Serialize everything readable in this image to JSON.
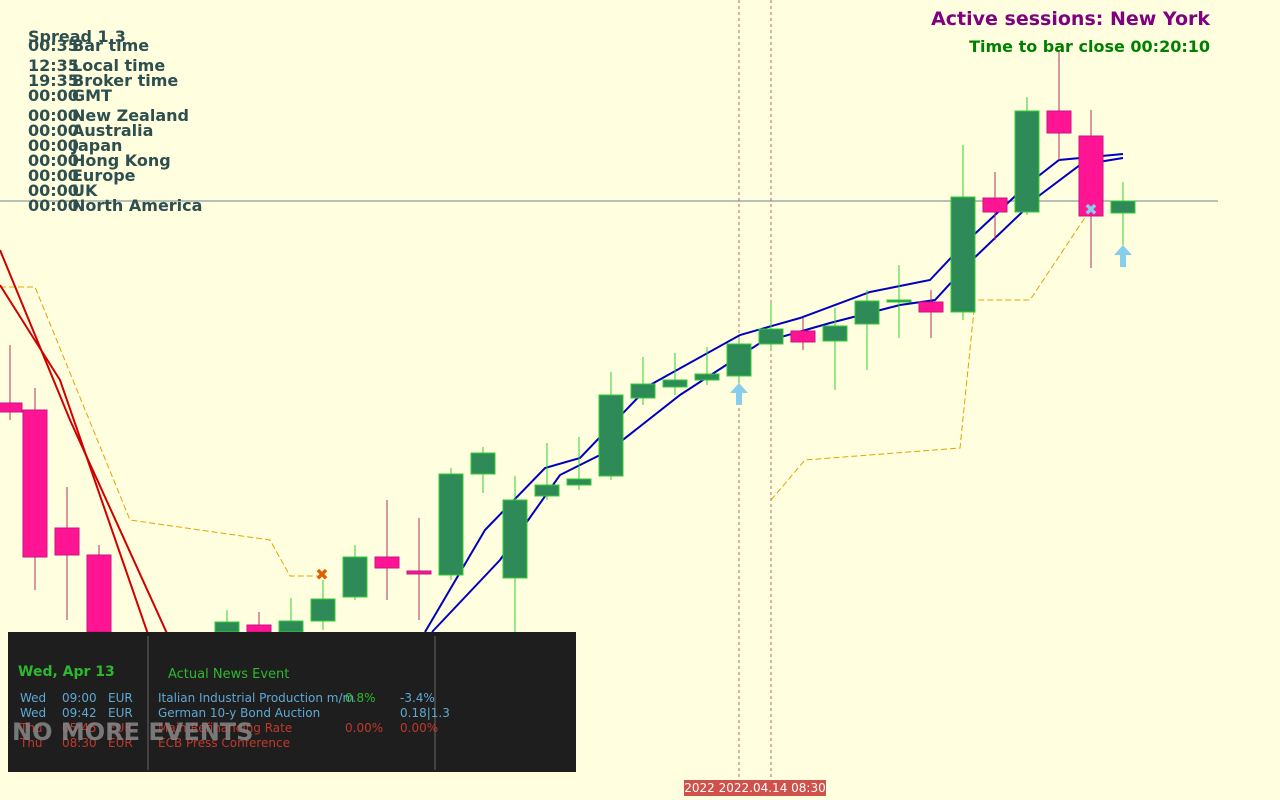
{
  "header": {
    "spread": "Spread 1.3",
    "active_sessions": "Active sessions: New York",
    "bar_close": "Time to bar close 00:20:10"
  },
  "clock": [
    {
      "time": "00:35",
      "label": "Bar time"
    },
    {
      "time": "12:35",
      "label": "Local time"
    },
    {
      "time": "19:35",
      "label": "Broker time"
    },
    {
      "time": "00:00",
      "label": "GMT"
    },
    {
      "time": "00:00",
      "label": "New Zealand"
    },
    {
      "time": "00:00",
      "label": "Australia"
    },
    {
      "time": "00:00",
      "label": "Japan"
    },
    {
      "time": "00:00",
      "label": "Hong Kong"
    },
    {
      "time": "00:00",
      "label": "Europe"
    },
    {
      "time": "00:00",
      "label": "UK"
    },
    {
      "time": "00:00",
      "label": "North America"
    }
  ],
  "news_panel": {
    "date": "Wed, Apr 13",
    "title": "Actual News Event",
    "status": "NO MORE EVENTS",
    "rows": [
      [
        "Wed",
        "09:00",
        "EUR",
        "Italian Industrial Production m/m",
        "0.8%",
        "-3.4%"
      ],
      [
        "Wed",
        "09:42",
        "EUR",
        "German 10-y Bond Auction",
        "",
        "0.18|1.3"
      ],
      [
        "Thu",
        "05:45",
        "EUR",
        "Main Refinancing Rate",
        "0.00%",
        "0.00%"
      ],
      [
        "Thu",
        "08:30",
        "EUR",
        "ECB Press Conference",
        "",
        ""
      ]
    ]
  },
  "time_label": "2022 2022.04.14 08:30"
}
